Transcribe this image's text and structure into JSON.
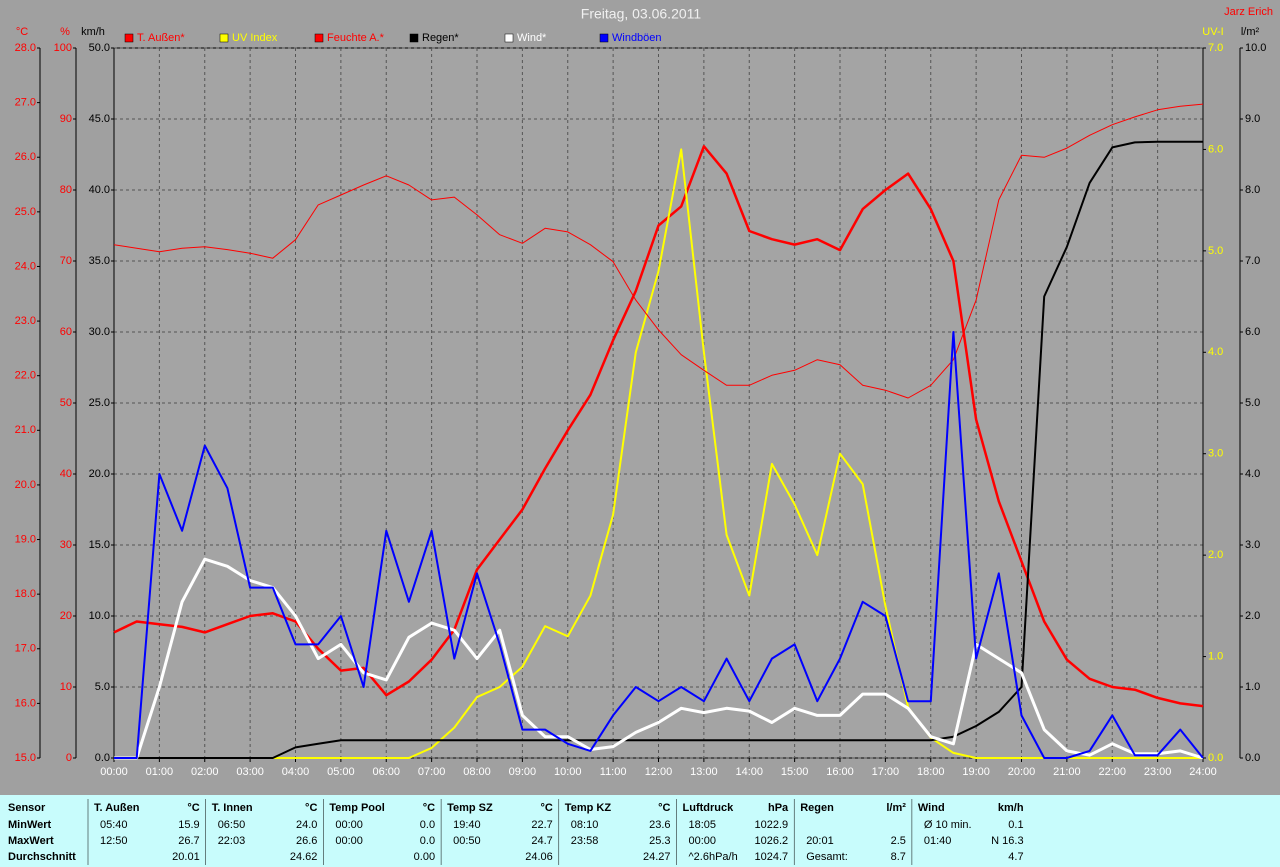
{
  "chart_data": {
    "type": "line",
    "title": "Freitag, 03.06.2011",
    "credit": "Jarz Erich",
    "grid": true,
    "x": [
      0,
      0.5,
      1,
      1.5,
      2,
      2.5,
      3,
      3.5,
      4,
      4.5,
      5,
      5.5,
      6,
      6.5,
      7,
      7.5,
      8,
      8.5,
      9,
      9.5,
      10,
      10.5,
      11,
      11.5,
      12,
      12.5,
      13,
      13.5,
      14,
      14.5,
      15,
      15.5,
      16,
      16.5,
      17,
      17.5,
      18,
      18.5,
      19,
      19.5,
      20,
      20.5,
      21,
      21.5,
      22,
      22.5,
      23,
      23.5,
      24
    ],
    "xlim": [
      0,
      24
    ],
    "xticks": [
      {
        "value": 0,
        "label": "00:00"
      },
      {
        "value": 1,
        "label": "01:00"
      },
      {
        "value": 2,
        "label": "02:00"
      },
      {
        "value": 3,
        "label": "03:00"
      },
      {
        "value": 4,
        "label": "04:00"
      },
      {
        "value": 5,
        "label": "05:00"
      },
      {
        "value": 6,
        "label": "06:00"
      },
      {
        "value": 7,
        "label": "07:00"
      },
      {
        "value": 8,
        "label": "08:00"
      },
      {
        "value": 9,
        "label": "09:00"
      },
      {
        "value": 10,
        "label": "10:00"
      },
      {
        "value": 11,
        "label": "11:00"
      },
      {
        "value": 12,
        "label": "12:00"
      },
      {
        "value": 13,
        "label": "13:00"
      },
      {
        "value": 14,
        "label": "14:00"
      },
      {
        "value": 15,
        "label": "15:00"
      },
      {
        "value": 16,
        "label": "16:00"
      },
      {
        "value": 17,
        "label": "17:00"
      },
      {
        "value": 18,
        "label": "18:00"
      },
      {
        "value": 19,
        "label": "19:00"
      },
      {
        "value": 20,
        "label": "20:00"
      },
      {
        "value": 21,
        "label": "21:00"
      },
      {
        "value": 22,
        "label": "22:00"
      },
      {
        "value": 23,
        "label": "23:00"
      },
      {
        "value": 24,
        "label": "24:00"
      }
    ],
    "axes": [
      {
        "id": "temp",
        "label": "°C",
        "color": "#ff0000",
        "side": "left",
        "lim": [
          15,
          28
        ],
        "ticks": [
          {
            "value": 15,
            "label": "15.0"
          },
          {
            "value": 16,
            "label": "16.0"
          },
          {
            "value": 17,
            "label": "17.0"
          },
          {
            "value": 18,
            "label": "18.0"
          },
          {
            "value": 19,
            "label": "19.0"
          },
          {
            "value": 20,
            "label": "20.0"
          },
          {
            "value": 21,
            "label": "21.0"
          },
          {
            "value": 22,
            "label": "22.0"
          },
          {
            "value": 23,
            "label": "23.0"
          },
          {
            "value": 24,
            "label": "24.0"
          },
          {
            "value": 25,
            "label": "25.0"
          },
          {
            "value": 26,
            "label": "26.0"
          },
          {
            "value": 27,
            "label": "27.0"
          },
          {
            "value": 28,
            "label": "28.0"
          }
        ]
      },
      {
        "id": "hum",
        "label": "%",
        "color": "#ff0000",
        "side": "left",
        "lim": [
          0,
          100
        ],
        "ticks": [
          0,
          10,
          20,
          30,
          40,
          50,
          60,
          70,
          80,
          90,
          100
        ]
      },
      {
        "id": "wind",
        "label": "km/h",
        "color": "#000000",
        "side": "left",
        "lim": [
          0,
          50
        ],
        "ticks": [
          {
            "value": 0,
            "label": "0.0"
          },
          {
            "value": 5,
            "label": "5.0"
          },
          {
            "value": 10,
            "label": "10.0"
          },
          {
            "value": 15,
            "label": "15.0"
          },
          {
            "value": 20,
            "label": "20.0"
          },
          {
            "value": 25,
            "label": "25.0"
          },
          {
            "value": 30,
            "label": "30.0"
          },
          {
            "value": 35,
            "label": "35.0"
          },
          {
            "value": 40,
            "label": "40.0"
          },
          {
            "value": 45,
            "label": "45.0"
          },
          {
            "value": 50,
            "label": "50.0"
          }
        ]
      },
      {
        "id": "uv",
        "label": "UV-I",
        "color": "#ffff00",
        "side": "right",
        "lim": [
          0,
          7
        ],
        "ticks": [
          {
            "value": 0,
            "label": "0.0"
          },
          {
            "value": 1,
            "label": "1.0"
          },
          {
            "value": 2,
            "label": "2.0"
          },
          {
            "value": 3,
            "label": "3.0"
          },
          {
            "value": 4,
            "label": "4.0"
          },
          {
            "value": 5,
            "label": "5.0"
          },
          {
            "value": 6,
            "label": "6.0"
          },
          {
            "value": 7,
            "label": "7.0"
          }
        ]
      },
      {
        "id": "rain",
        "label": "l/m²",
        "color": "#000000",
        "side": "right",
        "lim": [
          0,
          10
        ],
        "ticks": [
          {
            "value": 0,
            "label": "0.0"
          },
          {
            "value": 1,
            "label": "1.0"
          },
          {
            "value": 2,
            "label": "2.0"
          },
          {
            "value": 3,
            "label": "3.0"
          },
          {
            "value": 4,
            "label": "4.0"
          },
          {
            "value": 5,
            "label": "5.0"
          },
          {
            "value": 6,
            "label": "6.0"
          },
          {
            "value": 7,
            "label": "7.0"
          },
          {
            "value": 8,
            "label": "8.0"
          },
          {
            "value": 9,
            "label": "9.0"
          },
          {
            "value": 10,
            "label": "10.0"
          }
        ]
      }
    ],
    "series": [
      {
        "name": "T. Außen*",
        "color": "#ff0000",
        "axis": "temp",
        "width": 2.5,
        "values": [
          17.3,
          17.5,
          17.45,
          17.4,
          17.3,
          17.45,
          17.6,
          17.65,
          17.5,
          17.0,
          16.6,
          16.65,
          16.15,
          16.4,
          16.8,
          17.35,
          18.45,
          19.0,
          19.55,
          20.3,
          21.0,
          21.65,
          22.65,
          23.55,
          24.75,
          25.1,
          26.2,
          25.7,
          24.65,
          24.5,
          24.4,
          24.5,
          24.3,
          25.05,
          25.4,
          25.7,
          25.05,
          24.1,
          21.2,
          19.7,
          18.6,
          17.5,
          16.8,
          16.45,
          16.3,
          16.25,
          16.1,
          16.0,
          15.95
        ]
      },
      {
        "name": "UV Index",
        "color": "#ffff00",
        "axis": "uv",
        "width": 2,
        "values": [
          0,
          0,
          0,
          0,
          0,
          0,
          0,
          0,
          0,
          0,
          0,
          0,
          0,
          0,
          0.1,
          0.3,
          0.6,
          0.7,
          0.9,
          1.3,
          1.2,
          1.6,
          2.4,
          4.0,
          4.8,
          6.0,
          4.0,
          2.2,
          1.6,
          2.9,
          2.5,
          2.0,
          3.0,
          2.7,
          1.5,
          0.5,
          0.2,
          0.05,
          0,
          0,
          0,
          0,
          0,
          0,
          0,
          0,
          0,
          0,
          0
        ]
      },
      {
        "name": "Feuchte A.*",
        "color": "#ff0000",
        "axis": "hum",
        "width": 1,
        "values": [
          72.3,
          71.8,
          71.3,
          71.8,
          72,
          71.6,
          71.1,
          70.4,
          73,
          77.9,
          79.3,
          80.7,
          82,
          80.7,
          78.6,
          79,
          76.5,
          73.7,
          72.5,
          74.6,
          74.1,
          72.3,
          69.9,
          64.5,
          60.3,
          56.8,
          54.6,
          52.5,
          52.5,
          53.9,
          54.6,
          56.1,
          55.4,
          52.5,
          51.8,
          50.7,
          52.5,
          56.1,
          64.5,
          78.6,
          84.9,
          84.6,
          85.9,
          87.7,
          89.2,
          90.3,
          91.3,
          91.8,
          92.1
        ]
      },
      {
        "name": "Regen*",
        "color": "#000000",
        "axis": "rain",
        "width": 2,
        "values": [
          0,
          0,
          0,
          0,
          0,
          0,
          0,
          0,
          0.15,
          0.2,
          0.25,
          0.25,
          0.25,
          0.25,
          0.25,
          0.25,
          0.25,
          0.25,
          0.25,
          0.25,
          0.25,
          0.25,
          0.25,
          0.25,
          0.25,
          0.25,
          0.25,
          0.25,
          0.25,
          0.25,
          0.25,
          0.25,
          0.25,
          0.25,
          0.25,
          0.25,
          0.25,
          0.3,
          0.45,
          0.65,
          1.0,
          6.5,
          7.2,
          8.1,
          8.6,
          8.67,
          8.68,
          8.68,
          8.68
        ]
      },
      {
        "name": "Wind*",
        "color": "#ffffff",
        "axis": "wind",
        "width": 3,
        "values": [
          0,
          0,
          5,
          11,
          14,
          13.5,
          12.5,
          12,
          10,
          7,
          8,
          6,
          5.5,
          8.5,
          9.5,
          9,
          7,
          9,
          3,
          1.5,
          1.5,
          0.6,
          0.8,
          1.8,
          2.5,
          3.5,
          3.2,
          3.5,
          3.3,
          2.5,
          3.5,
          3,
          3,
          4.5,
          4.5,
          3.5,
          1.5,
          1,
          8,
          7,
          6,
          2,
          0.5,
          0.2,
          1,
          0.3,
          0.3,
          0.5,
          0
        ]
      },
      {
        "name": "Windböen",
        "color": "#0000ff",
        "axis": "wind",
        "width": 2,
        "values": [
          0,
          0,
          20,
          16,
          22,
          19,
          12,
          12,
          8,
          8,
          10,
          5,
          16,
          11,
          16,
          7,
          13,
          8,
          2,
          2,
          1,
          0.5,
          3,
          5,
          4,
          5,
          4,
          7,
          4,
          7,
          8,
          4,
          7,
          11,
          10,
          4,
          4,
          30,
          7,
          13,
          3,
          0,
          0,
          0.5,
          3,
          0.2,
          0.2,
          2,
          0
        ]
      }
    ]
  },
  "table": {
    "header": "Sensor",
    "columns": [
      {
        "name": "T. Außen",
        "unit": "°C"
      },
      {
        "name": "T. Innen",
        "unit": "°C"
      },
      {
        "name": "Temp Pool",
        "unit": "°C"
      },
      {
        "name": "Temp SZ",
        "unit": "°C"
      },
      {
        "name": "Temp KZ",
        "unit": "°C"
      },
      {
        "name": "Luftdruck",
        "unit": "hPa"
      },
      {
        "name": "Regen",
        "unit": "l/m²"
      },
      {
        "name": "Wind",
        "unit": "km/h"
      }
    ],
    "rows": [
      {
        "label": "MinWert",
        "cells": [
          {
            "time": "05:40",
            "value": "15.9"
          },
          {
            "time": "06:50",
            "value": "24.0"
          },
          {
            "time": "00:00",
            "value": "0.0"
          },
          {
            "time": "19:40",
            "value": "22.7"
          },
          {
            "time": "08:10",
            "value": "23.6"
          },
          {
            "time": "18:05",
            "value": "1022.9"
          },
          {},
          {
            "time": "Ø 10 min.",
            "value": "0.1"
          }
        ]
      },
      {
        "label": "MaxWert",
        "cells": [
          {
            "time": "12:50",
            "value": "26.7"
          },
          {
            "time": "22:03",
            "value": "26.6"
          },
          {
            "time": "00:00",
            "value": "0.0"
          },
          {
            "time": "00:50",
            "value": "24.7"
          },
          {
            "time": "23:58",
            "value": "25.3"
          },
          {
            "time": "00:00",
            "value": "1026.2"
          },
          {
            "time": "20:01",
            "value": "2.5"
          },
          {
            "time": "01:40",
            "value": "N 16.3"
          }
        ]
      },
      {
        "label": "Durchschnitt",
        "cells": [
          {
            "value": "20.01"
          },
          {
            "value": "24.62"
          },
          {
            "value": "0.00"
          },
          {
            "value": "24.06"
          },
          {
            "value": "24.27"
          },
          {
            "time": "^2.6hPa/h",
            "value": "1024.7"
          },
          {
            "time": "Gesamt:",
            "value": "8.7"
          },
          {
            "value": "4.7"
          }
        ]
      }
    ]
  }
}
